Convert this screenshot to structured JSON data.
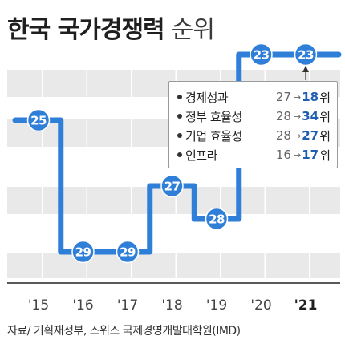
{
  "title": {
    "main": "한국 국가경쟁력",
    "sub": "순위"
  },
  "chart_data": {
    "type": "line",
    "line_style": "step",
    "categories": [
      "'15",
      "'16",
      "'17",
      "'18",
      "'19",
      "'20",
      "'21"
    ],
    "series": [
      {
        "values": [
          25,
          29,
          29,
          27,
          28,
          23,
          23
        ]
      }
    ],
    "y_inverted": true,
    "highlight_category": "'21",
    "grid": "horizontal bands",
    "colors": {
      "line": "#2f7fd8",
      "marker": "#2f7fd8",
      "band": "#e9e9e9",
      "axis": "#222222",
      "highlight": "#1f1f1f"
    }
  },
  "legend": {
    "items": [
      {
        "label": "경제성과",
        "from": "27",
        "arrow": "→",
        "to": "18",
        "unit": "위"
      },
      {
        "label": "정부 효율성",
        "from": "28",
        "arrow": "→",
        "to": "34",
        "unit": "위"
      },
      {
        "label": "기업 효율성",
        "from": "28",
        "arrow": "→",
        "to": "27",
        "unit": "위"
      },
      {
        "label": "인프라",
        "from": "16",
        "arrow": "→",
        "to": "17",
        "unit": "위"
      }
    ]
  },
  "source": "자료/ 기획재정부, 스위스 국제경영개발대학원(IMD)"
}
